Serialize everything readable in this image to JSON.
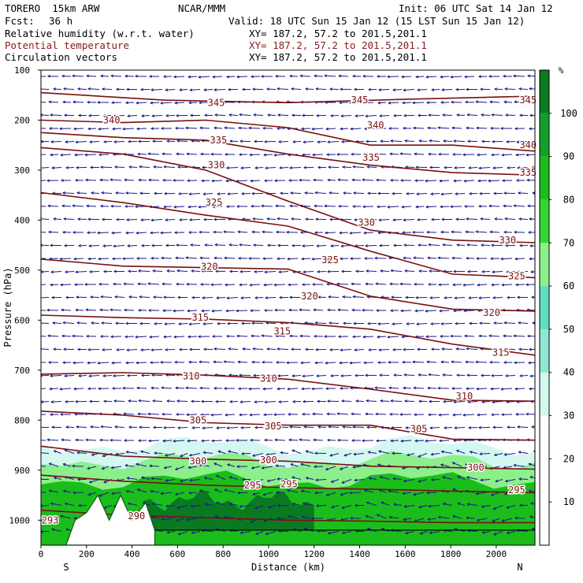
{
  "header": {
    "model": "TORERO  15km ARW",
    "org": "NCAR/MMM",
    "init": "Init: 06 UTC Sat 14 Jan 12",
    "fcst_label": "Fcst:",
    "fcst_value": "36 h",
    "valid": "Valid: 18 UTC Sun 15 Jan 12 (15 LST Sun 15 Jan 12)"
  },
  "fields": [
    {
      "name": "Relative humidity (w.r.t. water)",
      "xy": "XY= 187.2, 57.2 to 201.5,201.1",
      "color": "#000000"
    },
    {
      "name": "Potential temperature",
      "xy": "XY= 187.2, 57.2 to 201.5,201.1",
      "color": "#8b1a1a"
    },
    {
      "name": "Circulation vectors",
      "xy": "XY= 187.2, 57.2 to 201.5,201.1",
      "color": "#000000"
    }
  ],
  "chart_data": {
    "type": "cross-section contour",
    "xlabel": "Distance (km)",
    "ylabel": "Pressure (hPa)",
    "x_ticks": [
      0,
      200,
      400,
      600,
      800,
      1000,
      1200,
      1400,
      1600,
      1800,
      2000
    ],
    "xlim": [
      0,
      2170
    ],
    "y_ticks": [
      100,
      200,
      300,
      400,
      500,
      600,
      700,
      800,
      900,
      1000
    ],
    "ylim": [
      1050,
      100
    ],
    "x_end_labels": {
      "left": "S",
      "right": "N"
    },
    "colorbar": {
      "unit": "%",
      "ticks": [
        10,
        20,
        30,
        40,
        50,
        60,
        70,
        80,
        90,
        100
      ],
      "levels": [
        30,
        40,
        50,
        60,
        70,
        80,
        90,
        100
      ],
      "colors": [
        "#ffffff",
        "#d4f7ef",
        "#8fe8d3",
        "#5fddc0",
        "#8cef8c",
        "#33d633",
        "#1bbd1b",
        "#139f2c",
        "#0a7a21"
      ]
    },
    "theta_isolines": [
      {
        "value": 345,
        "p": [
          145,
          160,
          165,
          158,
          152
        ]
      },
      {
        "value": 340,
        "p": [
          200,
          205,
          200,
          215,
          250,
          250,
          262
        ]
      },
      {
        "value": 335,
        "p": [
          225,
          235,
          240,
          268,
          290,
          305,
          310
        ]
      },
      {
        "value": 330,
        "p": [
          255,
          268,
          300,
          362,
          420,
          440,
          445
        ]
      },
      {
        "value": 325,
        "p": [
          345,
          365,
          390,
          412,
          462,
          508,
          515
        ]
      },
      {
        "value": 320,
        "p": [
          478,
          492,
          495,
          498,
          552,
          578,
          582
        ]
      },
      {
        "value": 315,
        "p": [
          590,
          595,
          598,
          605,
          618,
          648,
          670
        ]
      },
      {
        "value": 310,
        "p": [
          708,
          705,
          710,
          718,
          738,
          760,
          762
        ]
      },
      {
        "value": 305,
        "p": [
          782,
          790,
          805,
          810,
          810,
          838,
          840
        ]
      },
      {
        "value": 300,
        "p": [
          852,
          872,
          878,
          882,
          892,
          895,
          898
        ]
      },
      {
        "value": 295,
        "p": [
          910,
          922,
          930,
          935,
          938,
          942,
          945
        ]
      },
      {
        "value": 290,
        "p": [
          980,
          990,
          995,
          1000,
          1002,
          1005,
          1005
        ]
      }
    ],
    "theta_labels": [
      {
        "text": "345",
        "x": 770,
        "p": 165
      },
      {
        "text": "345",
        "x": 1400,
        "p": 160
      },
      {
        "text": "345",
        "x": 2140,
        "p": 160
      },
      {
        "text": "340",
        "x": 310,
        "p": 200
      },
      {
        "text": "340",
        "x": 1470,
        "p": 210
      },
      {
        "text": "340",
        "x": 2140,
        "p": 250
      },
      {
        "text": "335",
        "x": 780,
        "p": 240
      },
      {
        "text": "335",
        "x": 1450,
        "p": 275
      },
      {
        "text": "335",
        "x": 2140,
        "p": 305
      },
      {
        "text": "330",
        "x": 770,
        "p": 290
      },
      {
        "text": "330",
        "x": 1430,
        "p": 405
      },
      {
        "text": "330",
        "x": 2050,
        "p": 440
      },
      {
        "text": "325",
        "x": 760,
        "p": 365
      },
      {
        "text": "325",
        "x": 1270,
        "p": 480
      },
      {
        "text": "325",
        "x": 2090,
        "p": 512
      },
      {
        "text": "320",
        "x": 740,
        "p": 493
      },
      {
        "text": "320",
        "x": 1180,
        "p": 552
      },
      {
        "text": "320",
        "x": 1980,
        "p": 585
      },
      {
        "text": "315",
        "x": 700,
        "p": 595
      },
      {
        "text": "315",
        "x": 1060,
        "p": 622
      },
      {
        "text": "315",
        "x": 2020,
        "p": 665
      },
      {
        "text": "310",
        "x": 660,
        "p": 712
      },
      {
        "text": "310",
        "x": 1000,
        "p": 717
      },
      {
        "text": "310",
        "x": 1860,
        "p": 752
      },
      {
        "text": "305",
        "x": 690,
        "p": 800
      },
      {
        "text": "305",
        "x": 1020,
        "p": 812
      },
      {
        "text": "305",
        "x": 1660,
        "p": 818
      },
      {
        "text": "300",
        "x": 690,
        "p": 882
      },
      {
        "text": "300",
        "x": 1000,
        "p": 880
      },
      {
        "text": "300",
        "x": 1910,
        "p": 895
      },
      {
        "text": "295",
        "x": 930,
        "p": 930
      },
      {
        "text": "295",
        "x": 1090,
        "p": 928
      },
      {
        "text": "295",
        "x": 2090,
        "p": 940
      },
      {
        "text": "290",
        "x": 420,
        "p": 992
      },
      {
        "text": "293",
        "x": 40,
        "p": 1000
      }
    ],
    "terrain_peaks": [
      {
        "x": 110,
        "p": 1050
      },
      {
        "x": 150,
        "p": 1000
      },
      {
        "x": 200,
        "p": 985
      },
      {
        "x": 250,
        "p": 950
      },
      {
        "x": 300,
        "p": 1000
      },
      {
        "x": 350,
        "p": 950
      },
      {
        "x": 400,
        "p": 1000
      },
      {
        "x": 460,
        "p": 965
      },
      {
        "x": 500,
        "p": 1020
      }
    ],
    "moist_regions": [
      {
        "value": 30,
        "x": [
          0,
          2170
        ],
        "p": [
          850,
          1050
        ]
      },
      {
        "value": 60,
        "x": [
          0,
          2170
        ],
        "p": [
          880,
          1050
        ]
      },
      {
        "value": 80,
        "x": [
          0,
          2170
        ],
        "p": [
          920,
          1050
        ]
      },
      {
        "value": 100,
        "x": [
          450,
          1200
        ],
        "p": [
          960,
          1020
        ]
      }
    ],
    "grid": false
  }
}
